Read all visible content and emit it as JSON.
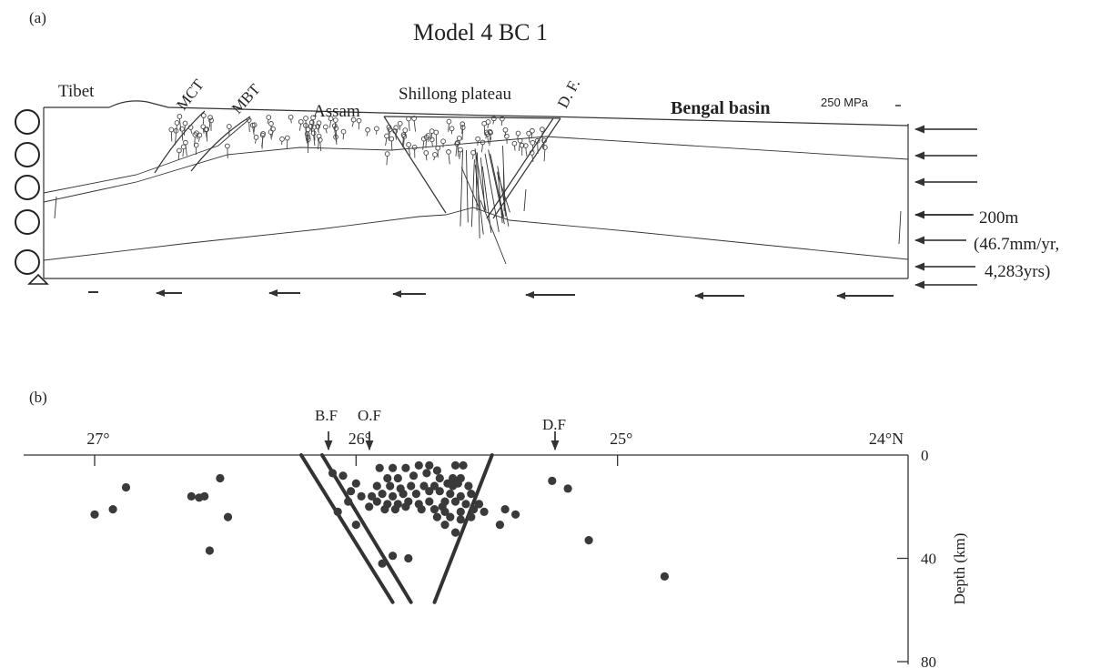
{
  "panel_a": {
    "label": "(a)",
    "title": "Model 4 BC 1",
    "labels": {
      "tibet": "Tibet",
      "mct": "MCT",
      "mbt": "MBT",
      "assam": "Assam",
      "shillong": "Shillong plateau",
      "df": "D. F.",
      "bengal": "Bengal basin",
      "stress_scale": "250 MPa"
    },
    "displacement": {
      "amount": "200m",
      "rate": "(46.7mm/yr,",
      "duration": "4,283yrs)"
    },
    "colors": {
      "line": "#333333",
      "fill": "#ffffff"
    }
  },
  "panel_b": {
    "label": "(b)",
    "fault_labels": {
      "bf": "B.F",
      "of": "O.F",
      "df": "D.F"
    },
    "x_ticks": [
      {
        "value": 27,
        "label": "27°"
      },
      {
        "value": 26,
        "label": "26°"
      },
      {
        "value": 25,
        "label": "25°"
      },
      {
        "value": 24,
        "label": "24°N"
      }
    ],
    "depth_axis": {
      "label": "Depth (km)",
      "ticks": [
        {
          "value": 0,
          "label": "0"
        },
        {
          "value": 40,
          "label": "40"
        },
        {
          "value": 80,
          "label": "80"
        }
      ]
    },
    "colors": {
      "dot": "#3a3a3a",
      "fault": "#333333"
    }
  },
  "chart_data": {
    "type": "scatter",
    "xlabel": "",
    "ylabel": "Depth (km)",
    "xlim": [
      27.0,
      24.0
    ],
    "ylim": [
      0,
      80
    ],
    "faults": [
      {
        "name": "B.F",
        "surface_lat": 26.21,
        "lat_at_57km": 25.86
      },
      {
        "name": "O.F",
        "surface_lat": 26.13,
        "lat_at_57km": 25.79
      },
      {
        "name": "D.F",
        "surface_lat": 25.48,
        "lat_at_57km": 25.7
      }
    ],
    "points": [
      [
        27.0,
        23
      ],
      [
        26.93,
        21
      ],
      [
        26.88,
        12.5
      ],
      [
        26.63,
        16
      ],
      [
        26.6,
        16.5
      ],
      [
        26.58,
        16
      ],
      [
        26.52,
        9
      ],
      [
        26.49,
        24
      ],
      [
        26.56,
        37
      ],
      [
        26.09,
        7
      ],
      [
        26.05,
        8
      ],
      [
        26.02,
        14
      ],
      [
        25.98,
        16
      ],
      [
        25.95,
        20
      ],
      [
        26.0,
        27
      ],
      [
        25.9,
        42
      ],
      [
        25.86,
        39
      ],
      [
        25.8,
        40
      ],
      [
        26.03,
        18
      ],
      [
        26.07,
        22
      ],
      [
        26.0,
        11
      ],
      [
        25.91,
        5
      ],
      [
        25.86,
        5
      ],
      [
        25.81,
        5
      ],
      [
        25.76,
        4
      ],
      [
        25.72,
        4
      ],
      [
        25.69,
        6
      ],
      [
        25.62,
        4
      ],
      [
        25.59,
        4
      ],
      [
        25.88,
        9
      ],
      [
        25.84,
        9
      ],
      [
        25.78,
        8
      ],
      [
        25.73,
        7
      ],
      [
        25.68,
        9
      ],
      [
        25.63,
        9
      ],
      [
        25.6,
        9
      ],
      [
        25.92,
        12
      ],
      [
        25.87,
        12
      ],
      [
        25.83,
        13
      ],
      [
        25.79,
        12
      ],
      [
        25.74,
        12
      ],
      [
        25.7,
        12
      ],
      [
        25.65,
        11
      ],
      [
        25.61,
        11
      ],
      [
        25.57,
        12
      ],
      [
        25.94,
        16
      ],
      [
        25.9,
        15
      ],
      [
        25.86,
        16
      ],
      [
        25.82,
        15
      ],
      [
        25.77,
        15
      ],
      [
        25.72,
        14
      ],
      [
        25.68,
        14
      ],
      [
        25.64,
        15
      ],
      [
        25.6,
        16
      ],
      [
        25.56,
        15
      ],
      [
        25.92,
        18
      ],
      [
        25.88,
        19
      ],
      [
        25.84,
        19
      ],
      [
        25.8,
        18
      ],
      [
        25.76,
        19
      ],
      [
        25.72,
        18
      ],
      [
        25.66,
        18
      ],
      [
        25.62,
        18
      ],
      [
        25.58,
        19
      ],
      [
        25.53,
        19
      ],
      [
        25.89,
        21
      ],
      [
        25.85,
        21
      ],
      [
        25.81,
        20
      ],
      [
        25.75,
        21
      ],
      [
        25.7,
        21
      ],
      [
        25.66,
        22
      ],
      [
        25.6,
        22
      ],
      [
        25.55,
        21
      ],
      [
        25.69,
        24
      ],
      [
        25.64,
        24
      ],
      [
        25.6,
        25
      ],
      [
        25.56,
        24
      ],
      [
        25.51,
        22
      ],
      [
        25.66,
        27
      ],
      [
        25.62,
        30
      ],
      [
        25.67,
        20
      ],
      [
        25.63,
        12
      ],
      [
        25.45,
        27
      ],
      [
        25.43,
        21
      ],
      [
        25.39,
        23
      ],
      [
        25.25,
        10
      ],
      [
        25.19,
        13
      ],
      [
        25.11,
        33
      ],
      [
        25.53,
        19
      ],
      [
        24.82,
        47
      ]
    ]
  }
}
